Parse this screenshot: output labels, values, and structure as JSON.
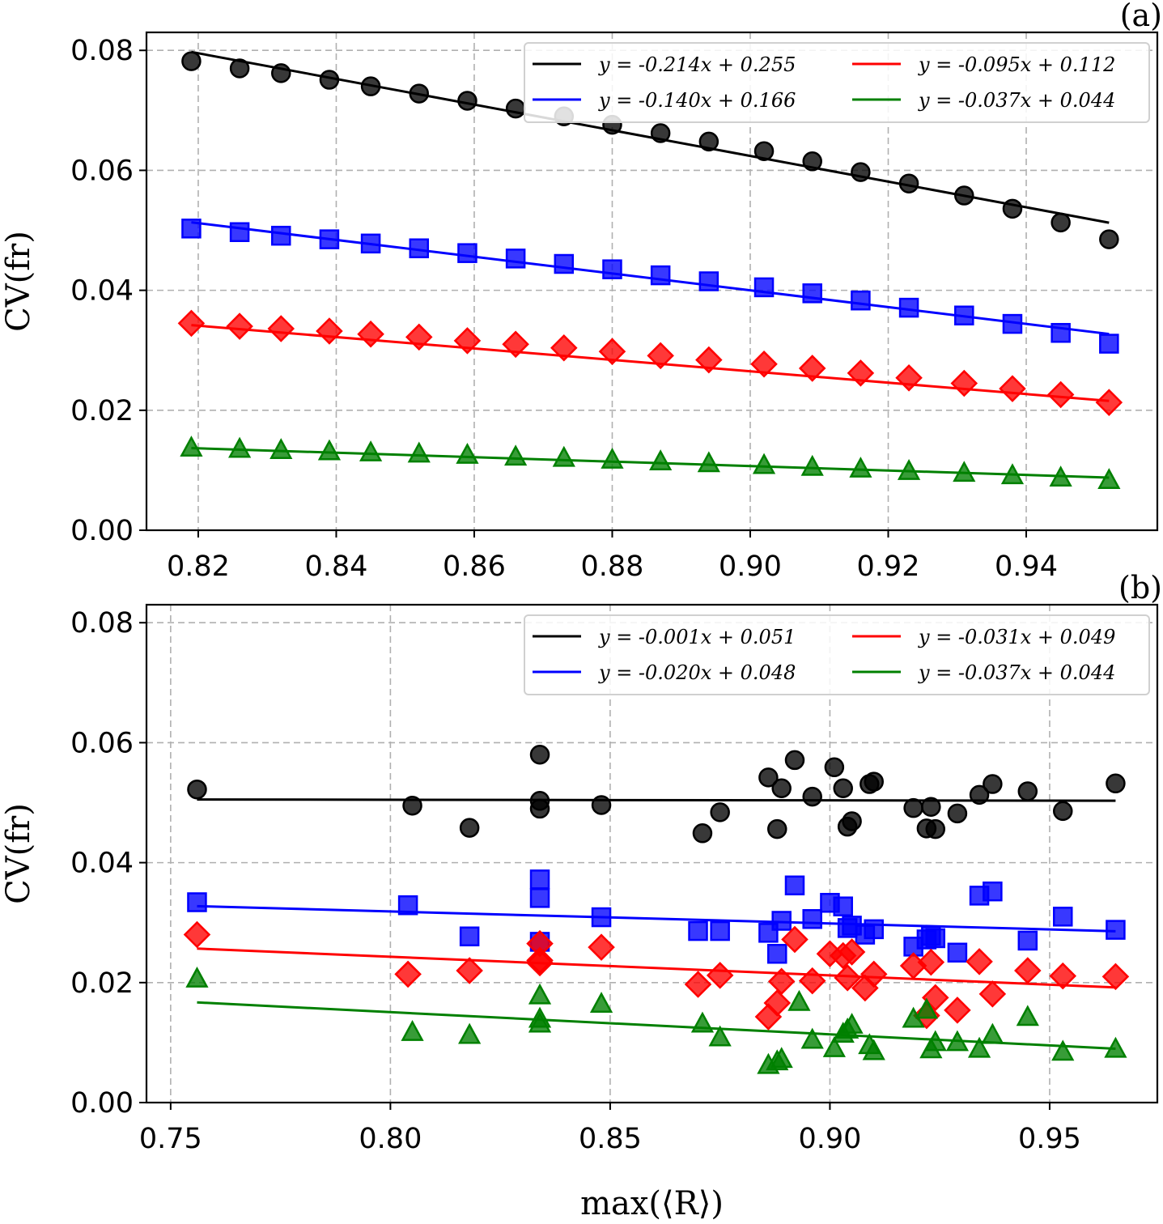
{
  "chart_data": [
    {
      "type": "scatter",
      "panel_label": "(a)",
      "xlabel": "",
      "ylabel": "CV(fr)",
      "xlim": [
        0.8125,
        0.959
      ],
      "ylim": [
        0.0,
        0.083
      ],
      "xticks": [
        "0.82",
        "0.84",
        "0.86",
        "0.88",
        "0.90",
        "0.92",
        "0.94"
      ],
      "xtick_values": [
        0.82,
        0.84,
        0.86,
        0.88,
        0.9,
        0.92,
        0.94
      ],
      "yticks": [
        "0.00",
        "0.02",
        "0.04",
        "0.06",
        "0.08"
      ],
      "ytick_values": [
        0.0,
        0.02,
        0.04,
        0.06,
        0.08
      ],
      "grid": true,
      "legend_position": "top-right",
      "series": [
        {
          "name": "y = -0.214x + 0.255",
          "color": "#000000",
          "marker": "circle",
          "fit": {
            "slope": -0.214,
            "intercept": 0.255
          },
          "x": [
            0.819,
            0.826,
            0.832,
            0.839,
            0.845,
            0.852,
            0.859,
            0.866,
            0.873,
            0.88,
            0.887,
            0.894,
            0.902,
            0.909,
            0.916,
            0.923,
            0.931,
            0.938,
            0.945,
            0.952
          ],
          "y": [
            0.0782,
            0.077,
            0.0762,
            0.0751,
            0.074,
            0.0728,
            0.0716,
            0.0703,
            0.069,
            0.0676,
            0.0662,
            0.0648,
            0.0632,
            0.0615,
            0.0597,
            0.0578,
            0.0558,
            0.0536,
            0.0513,
            0.0485
          ]
        },
        {
          "name": "y = -0.140x + 0.166",
          "color": "#0000ff",
          "marker": "square",
          "fit": {
            "slope": -0.14,
            "intercept": 0.166
          },
          "x": [
            0.819,
            0.826,
            0.832,
            0.839,
            0.845,
            0.852,
            0.859,
            0.866,
            0.873,
            0.88,
            0.887,
            0.894,
            0.902,
            0.909,
            0.916,
            0.923,
            0.931,
            0.938,
            0.945,
            0.952
          ],
          "y": [
            0.0503,
            0.0497,
            0.0491,
            0.0485,
            0.0478,
            0.047,
            0.0462,
            0.0453,
            0.0444,
            0.0435,
            0.0425,
            0.0415,
            0.0405,
            0.0395,
            0.0383,
            0.0371,
            0.0358,
            0.0344,
            0.0329,
            0.0311
          ]
        },
        {
          "name": "y = -0.095x + 0.112",
          "color": "#ff0000",
          "marker": "diamond",
          "fit": {
            "slope": -0.095,
            "intercept": 0.112
          },
          "x": [
            0.819,
            0.826,
            0.832,
            0.839,
            0.845,
            0.852,
            0.859,
            0.866,
            0.873,
            0.88,
            0.887,
            0.894,
            0.902,
            0.909,
            0.916,
            0.923,
            0.931,
            0.938,
            0.945,
            0.952
          ],
          "y": [
            0.0345,
            0.034,
            0.0336,
            0.0332,
            0.0327,
            0.0322,
            0.0316,
            0.031,
            0.0304,
            0.0298,
            0.0291,
            0.0284,
            0.0277,
            0.027,
            0.0262,
            0.0254,
            0.0245,
            0.0236,
            0.0226,
            0.0213
          ]
        },
        {
          "name": "y = -0.037x + 0.044",
          "color": "#008000",
          "marker": "triangle",
          "fit": {
            "slope": -0.037,
            "intercept": 0.044
          },
          "x": [
            0.819,
            0.826,
            0.832,
            0.839,
            0.845,
            0.852,
            0.859,
            0.866,
            0.873,
            0.88,
            0.887,
            0.894,
            0.902,
            0.909,
            0.916,
            0.923,
            0.931,
            0.938,
            0.945,
            0.952
          ],
          "y": [
            0.0138,
            0.0136,
            0.0134,
            0.0132,
            0.013,
            0.0128,
            0.0126,
            0.0123,
            0.0121,
            0.0118,
            0.0115,
            0.0112,
            0.0109,
            0.0106,
            0.0103,
            0.0099,
            0.0096,
            0.0092,
            0.0088,
            0.0084
          ]
        }
      ]
    },
    {
      "type": "scatter",
      "panel_label": "(b)",
      "xlabel": "max(⟨R⟩)",
      "ylabel": "CV(fr)",
      "xlim": [
        0.7445,
        0.9745
      ],
      "ylim": [
        0.0,
        0.083
      ],
      "xticks": [
        "0.75",
        "0.80",
        "0.85",
        "0.90",
        "0.95"
      ],
      "xtick_values": [
        0.75,
        0.8,
        0.85,
        0.9,
        0.95
      ],
      "yticks": [
        "0.00",
        "0.02",
        "0.04",
        "0.06",
        "0.08"
      ],
      "ytick_values": [
        0.0,
        0.02,
        0.04,
        0.06,
        0.08
      ],
      "grid": true,
      "legend_position": "top-right",
      "fit_range": [
        0.756,
        0.965
      ],
      "series": [
        {
          "name": "y = -0.001x + 0.051",
          "color": "#000000",
          "marker": "circle",
          "fit": {
            "slope": -0.001,
            "intercept": 0.051
          },
          "x": [
            0.756,
            0.805,
            0.818,
            0.834,
            0.834,
            0.834,
            0.848,
            0.871,
            0.875,
            0.886,
            0.888,
            0.889,
            0.892,
            0.896,
            0.901,
            0.903,
            0.904,
            0.905,
            0.909,
            0.91,
            0.919,
            0.922,
            0.923,
            0.924,
            0.929,
            0.934,
            0.937,
            0.945,
            0.953,
            0.965
          ],
          "y": [
            0.0522,
            0.0495,
            0.0458,
            0.058,
            0.0503,
            0.049,
            0.0496,
            0.0449,
            0.0484,
            0.0542,
            0.0456,
            0.0524,
            0.0571,
            0.051,
            0.0559,
            0.0524,
            0.046,
            0.0469,
            0.0531,
            0.0535,
            0.0491,
            0.0457,
            0.0493,
            0.0456,
            0.0482,
            0.0513,
            0.0531,
            0.0519,
            0.0486,
            0.0532
          ]
        },
        {
          "name": "y = -0.020x + 0.048",
          "color": "#0000ff",
          "marker": "square",
          "fit": {
            "slope": -0.02,
            "intercept": 0.048
          },
          "x": [
            0.756,
            0.804,
            0.818,
            0.834,
            0.834,
            0.834,
            0.848,
            0.87,
            0.875,
            0.886,
            0.888,
            0.889,
            0.892,
            0.896,
            0.9,
            0.903,
            0.904,
            0.905,
            0.908,
            0.91,
            0.919,
            0.922,
            0.923,
            0.924,
            0.929,
            0.934,
            0.937,
            0.945,
            0.953,
            0.965
          ],
          "y": [
            0.0334,
            0.0329,
            0.0277,
            0.0372,
            0.0341,
            0.0268,
            0.0309,
            0.0286,
            0.0286,
            0.0283,
            0.0248,
            0.0303,
            0.0362,
            0.0306,
            0.0333,
            0.0327,
            0.0291,
            0.0295,
            0.028,
            0.0289,
            0.026,
            0.0272,
            0.0278,
            0.0274,
            0.025,
            0.0345,
            0.0352,
            0.027,
            0.031,
            0.0288
          ]
        },
        {
          "name": "y = -0.031x + 0.049",
          "color": "#ff0000",
          "marker": "diamond",
          "fit": {
            "slope": -0.031,
            "intercept": 0.049
          },
          "x": [
            0.756,
            0.804,
            0.818,
            0.834,
            0.834,
            0.834,
            0.848,
            0.87,
            0.875,
            0.886,
            0.888,
            0.889,
            0.892,
            0.896,
            0.9,
            0.903,
            0.904,
            0.905,
            0.908,
            0.91,
            0.919,
            0.922,
            0.923,
            0.924,
            0.929,
            0.934,
            0.937,
            0.945,
            0.953,
            0.965
          ],
          "y": [
            0.028,
            0.0214,
            0.022,
            0.0265,
            0.0237,
            0.0233,
            0.0259,
            0.0197,
            0.0212,
            0.0143,
            0.0166,
            0.0202,
            0.0272,
            0.0203,
            0.0248,
            0.0245,
            0.0208,
            0.0251,
            0.0191,
            0.0214,
            0.0228,
            0.0145,
            0.0234,
            0.0175,
            0.0154,
            0.0235,
            0.0181,
            0.022,
            0.0211,
            0.021
          ]
        },
        {
          "name": "y = -0.037x + 0.044",
          "color": "#008000",
          "marker": "triangle",
          "fit": {
            "slope": -0.037,
            "intercept": 0.044
          },
          "x": [
            0.756,
            0.805,
            0.818,
            0.834,
            0.834,
            0.834,
            0.848,
            0.871,
            0.875,
            0.886,
            0.888,
            0.889,
            0.893,
            0.896,
            0.901,
            0.903,
            0.904,
            0.905,
            0.909,
            0.91,
            0.919,
            0.922,
            0.923,
            0.924,
            0.929,
            0.934,
            0.937,
            0.945,
            0.953,
            0.965
          ],
          "y": [
            0.0207,
            0.0118,
            0.0113,
            0.0179,
            0.0132,
            0.014,
            0.0165,
            0.0132,
            0.0109,
            0.0063,
            0.0069,
            0.0073,
            0.0168,
            0.0105,
            0.0091,
            0.0115,
            0.0122,
            0.013,
            0.0096,
            0.0086,
            0.014,
            0.0155,
            0.0089,
            0.0101,
            0.0101,
            0.009,
            0.0113,
            0.0143,
            0.0085,
            0.009
          ]
        }
      ]
    }
  ]
}
